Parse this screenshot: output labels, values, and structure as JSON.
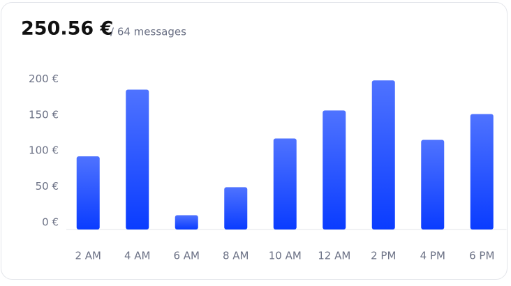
{
  "chart_data": {
    "type": "bar",
    "title": "250.56 €",
    "subtitle": "/ 64 messages",
    "categories": [
      "2 AM",
      "4 AM",
      "6 AM",
      "8 AM",
      "10 AM",
      "12 AM",
      "2 PM",
      "4 PM",
      "6 PM"
    ],
    "values": [
      102,
      195,
      20,
      59,
      127,
      166,
      208,
      125,
      161
    ],
    "color": "#0a3cff",
    "ylim": [
      0,
      215
    ],
    "yticks": [
      {
        "value": 0,
        "label": "0 €"
      },
      {
        "value": 50,
        "label": "50 €"
      },
      {
        "value": 100,
        "label": "100 €"
      },
      {
        "value": 150,
        "label": "150 €"
      },
      {
        "value": 200,
        "label": "200 €"
      }
    ],
    "grid": false
  }
}
